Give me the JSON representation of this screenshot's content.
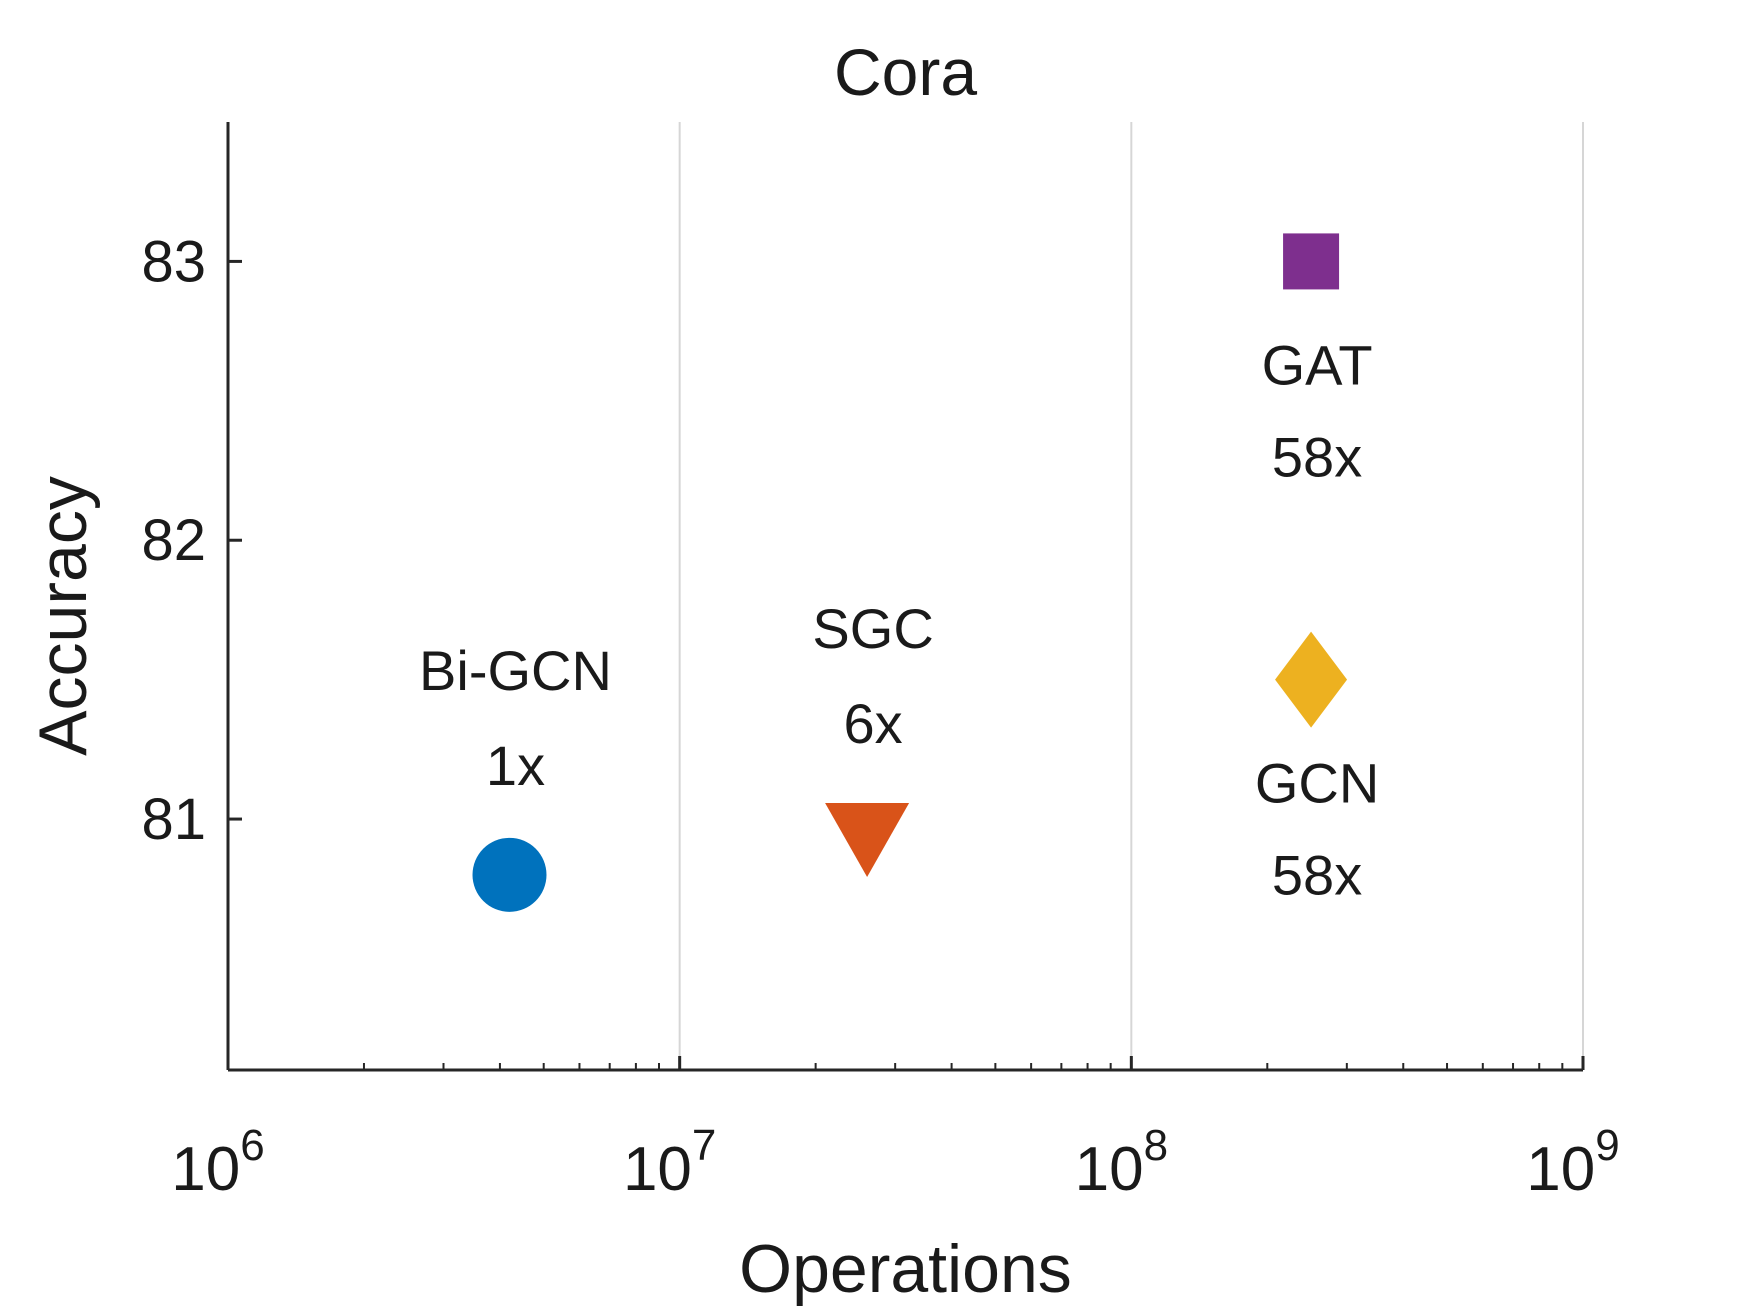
{
  "chart_data": {
    "type": "scatter",
    "title": "Cora",
    "xlabel": "Operations",
    "ylabel": "Accuracy",
    "xscale": "log",
    "xlim": [
      1000000,
      1000000000
    ],
    "ylim": [
      80.1,
      83.5
    ],
    "x_ticks": [
      {
        "value": 1000000,
        "base": "10",
        "exp": "6"
      },
      {
        "value": 10000000,
        "base": "10",
        "exp": "7"
      },
      {
        "value": 100000000,
        "base": "10",
        "exp": "8"
      },
      {
        "value": 1000000000,
        "base": "10",
        "exp": "9"
      }
    ],
    "y_ticks": [
      {
        "value": 81,
        "label": "81"
      },
      {
        "value": 82,
        "label": "82"
      },
      {
        "value": 83,
        "label": "83"
      }
    ],
    "grid": "x-major",
    "series": [
      {
        "name": "Bi-GCN",
        "x": 4200000,
        "y": 80.8,
        "marker": "circle",
        "color": "#0072bd",
        "label": "Bi-GCN",
        "ratio": "1x",
        "label_pos": "above"
      },
      {
        "name": "SGC",
        "x": 26000000,
        "y": 80.95,
        "marker": "triangle-down",
        "color": "#d95319",
        "label": "SGC",
        "ratio": "6x",
        "label_pos": "above"
      },
      {
        "name": "GAT",
        "x": 250000000,
        "y": 83.0,
        "marker": "square",
        "color": "#7e2f8e",
        "label": "GAT",
        "ratio": "58x",
        "label_pos": "below"
      },
      {
        "name": "GCN",
        "x": 250000000,
        "y": 81.5,
        "marker": "diamond",
        "color": "#edb120",
        "label": "GCN",
        "ratio": "58x",
        "label_pos": "below"
      }
    ]
  }
}
